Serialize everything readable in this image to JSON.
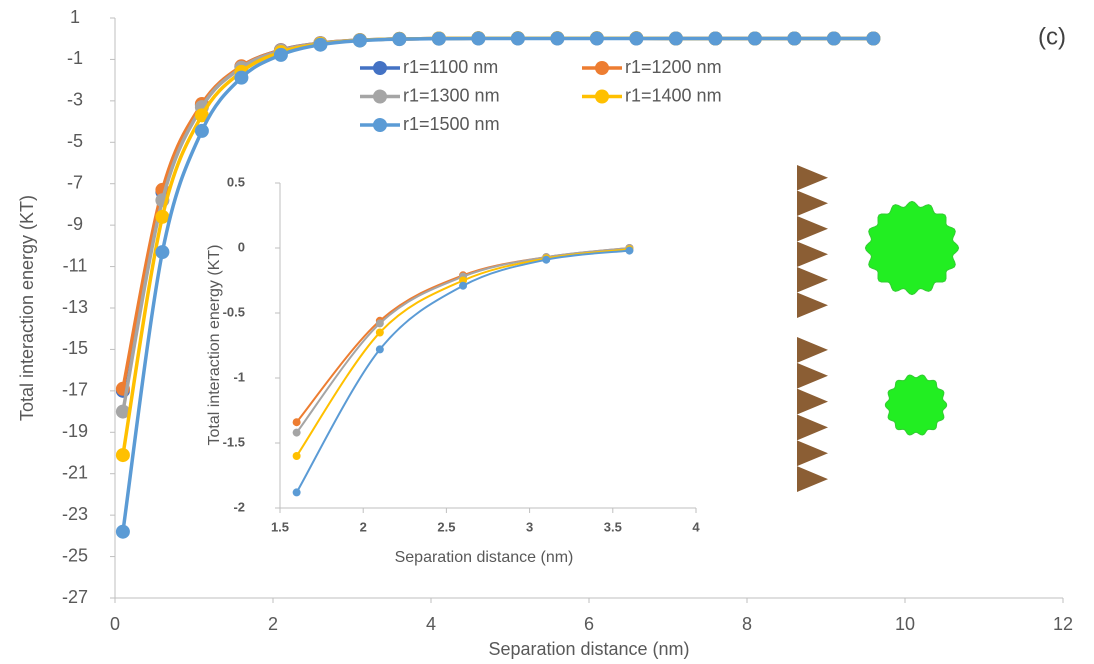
{
  "chart_data": [
    {
      "type": "line",
      "xlabel": "Separation distance (nm)",
      "ylabel": "Total interaction energy (KT)",
      "annotation": "(c)",
      "x": [
        0.1,
        0.6,
        1.1,
        1.6,
        2.1,
        2.6,
        3.1,
        3.6,
        4.1,
        4.6,
        5.1,
        5.6,
        6.1,
        6.6,
        7.1,
        7.6,
        8.1,
        8.6,
        9.1,
        9.6
      ],
      "xlim": [
        0,
        12
      ],
      "xticks": [
        0,
        2,
        4,
        6,
        8,
        10,
        12
      ],
      "ylim": [
        -27,
        1
      ],
      "yticks": [
        1,
        -1,
        -3,
        -5,
        -7,
        -9,
        -11,
        -13,
        -15,
        -17,
        -19,
        -21,
        -23,
        -25,
        -27
      ],
      "legend": "top-center",
      "series": [
        {
          "name": "r1=1100 nm",
          "color": "#4472c4",
          "values": [
            -17.0,
            -7.4,
            -3.2,
            -1.35,
            -0.55,
            -0.21,
            -0.07,
            -0.01,
            0.01,
            0.02,
            0.02,
            0.02,
            0.02,
            0.02,
            0.01,
            0.01,
            0.01,
            0.01,
            0.01,
            0.01
          ]
        },
        {
          "name": "r1=1200 nm",
          "color": "#ed7d31",
          "values": [
            -16.9,
            -7.3,
            -3.15,
            -1.33,
            -0.56,
            -0.21,
            -0.07,
            -0.01,
            0.01,
            0.02,
            0.02,
            0.02,
            0.02,
            0.02,
            0.01,
            0.01,
            0.01,
            0.01,
            0.01,
            0.01
          ]
        },
        {
          "name": "r1=1300 nm",
          "color": "#a5a5a5",
          "values": [
            -18.0,
            -7.8,
            -3.3,
            -1.4,
            -0.58,
            -0.22,
            -0.07,
            -0.01,
            0.01,
            0.02,
            0.02,
            0.02,
            0.02,
            0.02,
            0.01,
            0.01,
            0.01,
            0.01,
            0.01,
            0.01
          ]
        },
        {
          "name": "r1=1400 nm",
          "color": "#ffc000",
          "values": [
            -20.1,
            -8.6,
            -3.7,
            -1.6,
            -0.65,
            -0.25,
            -0.08,
            -0.01,
            0.01,
            0.02,
            0.02,
            0.02,
            0.02,
            0.02,
            0.01,
            0.01,
            0.01,
            0.01,
            0.01,
            0.01
          ]
        },
        {
          "name": "r1=1500 nm",
          "color": "#5b9bd5",
          "values": [
            -23.8,
            -10.3,
            -4.45,
            -1.88,
            -0.78,
            -0.29,
            -0.09,
            -0.02,
            0.0,
            0.01,
            0.01,
            0.01,
            0.01,
            0.01,
            0.01,
            0.01,
            0.01,
            0.01,
            0.01,
            0.01
          ]
        }
      ]
    },
    {
      "type": "line",
      "xlabel": "Separation distance (nm)",
      "ylabel": "Total interaction energy (KT)",
      "x": [
        1.6,
        2.1,
        2.6,
        3.1,
        3.6
      ],
      "xlim": [
        1.5,
        4
      ],
      "xticks": [
        1.5,
        2,
        2.5,
        3,
        3.5,
        4
      ],
      "ylim": [
        -2,
        0.5
      ],
      "yticks": [
        0.5,
        0,
        -0.5,
        -1,
        -1.5,
        -2
      ],
      "series": [
        {
          "color": "#ed7d31",
          "values": [
            -1.34,
            -0.56,
            -0.21,
            -0.07,
            0.0
          ]
        },
        {
          "color": "#a5a5a5",
          "values": [
            -1.42,
            -0.58,
            -0.22,
            -0.07,
            0.0
          ]
        },
        {
          "color": "#ffc000",
          "values": [
            -1.6,
            -0.65,
            -0.25,
            -0.08,
            -0.01
          ]
        },
        {
          "color": "#5b9bd5",
          "values": [
            -1.88,
            -0.78,
            -0.29,
            -0.09,
            -0.02
          ]
        }
      ]
    }
  ]
}
